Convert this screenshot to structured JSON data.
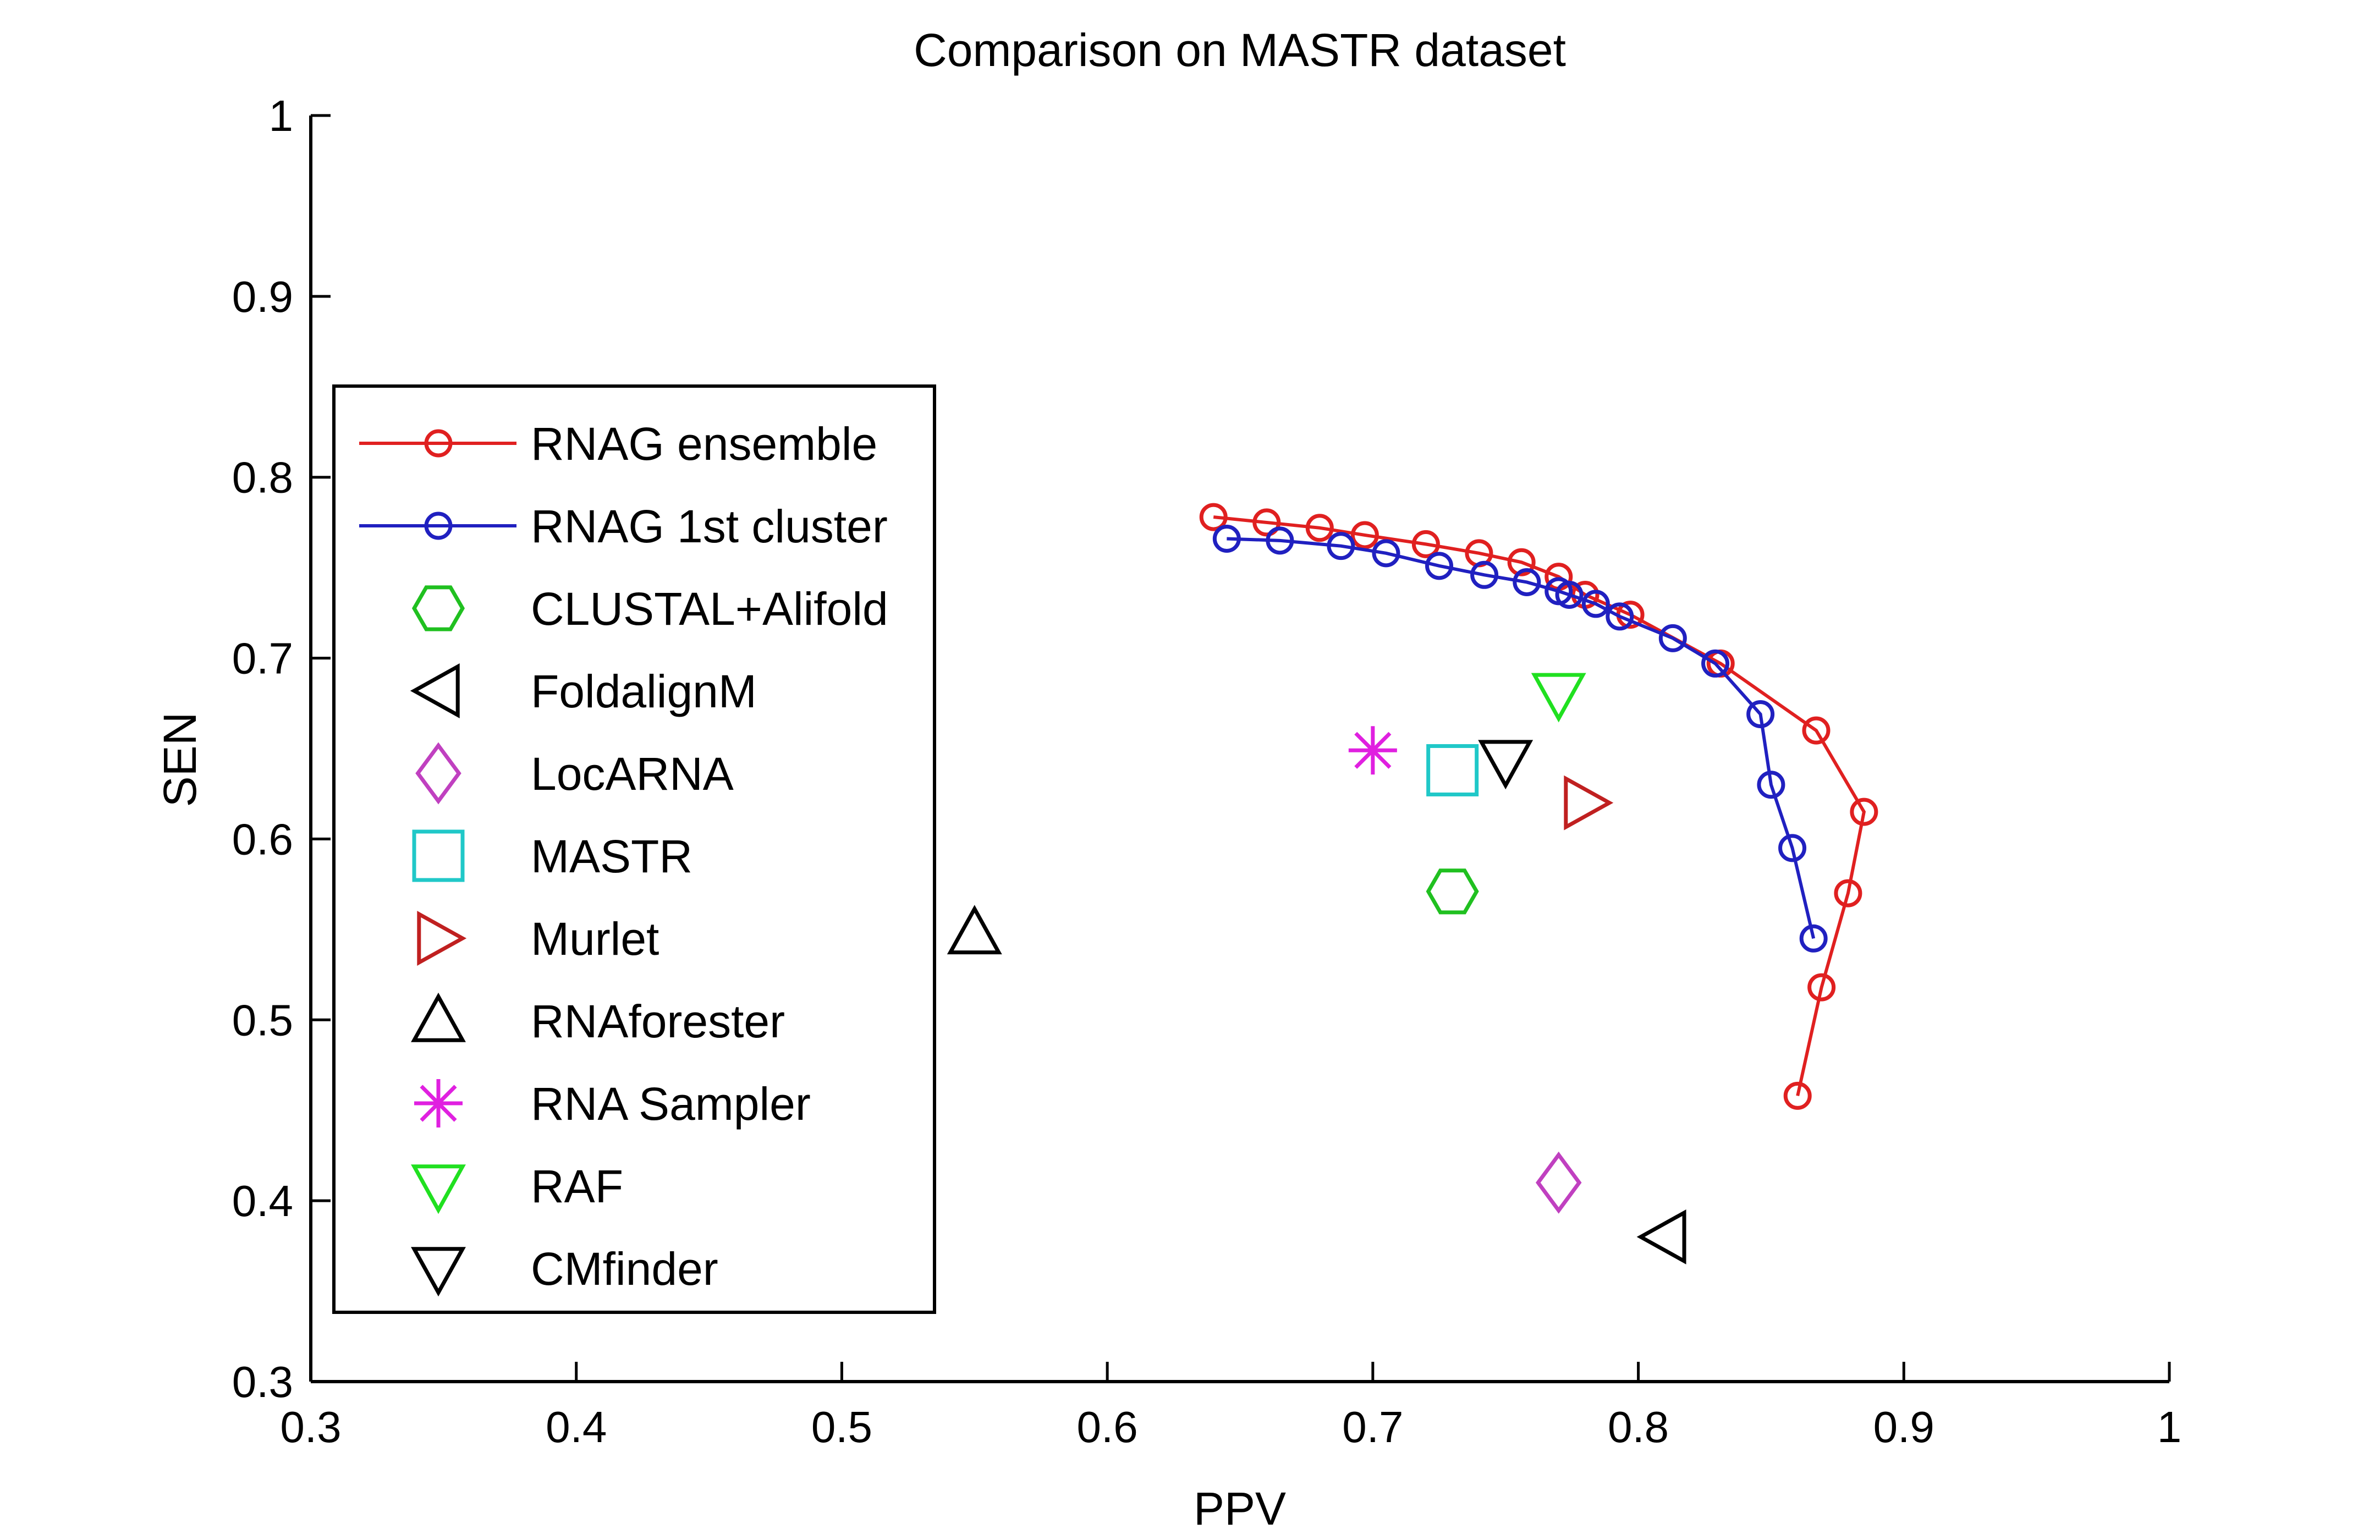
{
  "chart_data": {
    "type": "scatter",
    "title": "Comparison on MASTR dataset",
    "xlabel": "PPV",
    "ylabel": "SEN",
    "xlim": [
      0.3,
      1
    ],
    "ylim": [
      0.3,
      1
    ],
    "xticks": [
      "0.3",
      "0.4",
      "0.5",
      "0.6",
      "0.7",
      "0.8",
      "0.9",
      "1"
    ],
    "yticks": [
      "0.3",
      "0.4",
      "0.5",
      "0.6",
      "0.7",
      "0.8",
      "0.9",
      "1"
    ],
    "grid": false,
    "legend_position": "left",
    "series": [
      {
        "name": "RNAG ensemble",
        "marker": "circle",
        "line": true,
        "color": "#e02020",
        "points": [
          [
            0.64,
            0.778
          ],
          [
            0.66,
            0.775
          ],
          [
            0.68,
            0.772
          ],
          [
            0.697,
            0.768
          ],
          [
            0.72,
            0.763
          ],
          [
            0.74,
            0.758
          ],
          [
            0.756,
            0.753
          ],
          [
            0.77,
            0.745
          ],
          [
            0.78,
            0.735
          ],
          [
            0.797,
            0.724
          ],
          [
            0.831,
            0.697
          ],
          [
            0.867,
            0.66
          ],
          [
            0.885,
            0.615
          ],
          [
            0.879,
            0.57
          ],
          [
            0.869,
            0.518
          ],
          [
            0.86,
            0.458
          ]
        ]
      },
      {
        "name": "RNAG 1st cluster",
        "marker": "circle",
        "line": true,
        "color": "#2020c0",
        "points": [
          [
            0.645,
            0.766
          ],
          [
            0.665,
            0.765
          ],
          [
            0.688,
            0.762
          ],
          [
            0.705,
            0.758
          ],
          [
            0.725,
            0.751
          ],
          [
            0.742,
            0.746
          ],
          [
            0.758,
            0.742
          ],
          [
            0.77,
            0.737
          ],
          [
            0.774,
            0.735
          ],
          [
            0.784,
            0.73
          ],
          [
            0.793,
            0.723
          ],
          [
            0.813,
            0.711
          ],
          [
            0.829,
            0.697
          ],
          [
            0.846,
            0.669
          ],
          [
            0.85,
            0.63
          ],
          [
            0.858,
            0.595
          ],
          [
            0.866,
            0.545
          ]
        ]
      },
      {
        "name": "CLUSTAL+Alifold",
        "marker": "hexagon",
        "line": false,
        "color": "#20c020",
        "points": [
          [
            0.73,
            0.571
          ]
        ]
      },
      {
        "name": "FoldalignM",
        "marker": "triangle-left",
        "line": false,
        "color": "#000000",
        "points": [
          [
            0.81,
            0.38
          ]
        ]
      },
      {
        "name": "LocARNA",
        "marker": "diamond",
        "line": false,
        "color": "#c040c0",
        "points": [
          [
            0.77,
            0.41
          ]
        ]
      },
      {
        "name": "MASTR",
        "marker": "square",
        "line": false,
        "color": "#20c8c8",
        "points": [
          [
            0.73,
            0.638
          ]
        ]
      },
      {
        "name": "Murlet",
        "marker": "triangle-right",
        "line": false,
        "color": "#c02020",
        "points": [
          [
            0.78,
            0.62
          ]
        ]
      },
      {
        "name": "RNAforester",
        "marker": "triangle-up",
        "line": false,
        "color": "#000000",
        "points": [
          [
            0.55,
            0.548
          ]
        ]
      },
      {
        "name": "RNA Sampler",
        "marker": "asterisk",
        "line": false,
        "color": "#e020e0",
        "points": [
          [
            0.7,
            0.649
          ]
        ]
      },
      {
        "name": "RAF",
        "marker": "triangle-down",
        "line": false,
        "color": "#20e020",
        "points": [
          [
            0.77,
            0.68
          ]
        ]
      },
      {
        "name": "CMfinder",
        "marker": "triangle-down",
        "line": false,
        "color": "#000000",
        "points": [
          [
            0.75,
            0.643
          ]
        ]
      }
    ]
  }
}
